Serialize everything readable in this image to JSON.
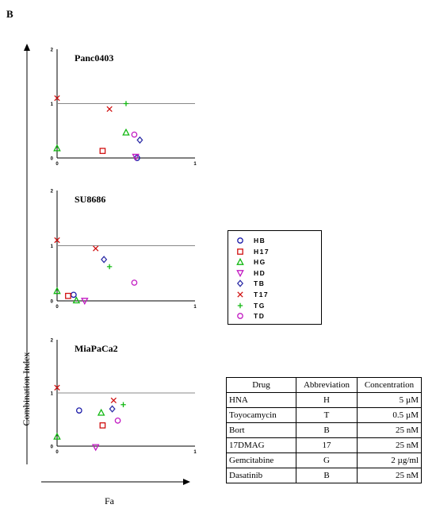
{
  "panel_label": "B",
  "shared_ylabel": "Combination  Index",
  "shared_xlabel": "Fa",
  "legend": [
    {
      "label": "HB",
      "color": "#1a1aa8",
      "marker": "circle"
    },
    {
      "label": "H17",
      "color": "#d01010",
      "marker": "square"
    },
    {
      "label": "HG",
      "color": "#11b811",
      "marker": "triangle"
    },
    {
      "label": "HD",
      "color": "#c21ac2",
      "marker": "triangle-down"
    },
    {
      "label": "TB",
      "color": "#3030a8",
      "marker": "diamond"
    },
    {
      "label": "T17",
      "color": "#d01010",
      "marker": "x"
    },
    {
      "label": "TG",
      "color": "#11b811",
      "marker": "plus"
    },
    {
      "label": "TD",
      "color": "#c21ac2",
      "marker": "circle"
    }
  ],
  "chart_data": [
    {
      "type": "scatter",
      "title": "Panc0403",
      "xlim": [
        0,
        1
      ],
      "ylim": [
        0,
        2
      ],
      "x_ticks": [
        "0",
        "1"
      ],
      "y_ticks": [
        "0",
        "1",
        "2"
      ],
      "reference_line": 1,
      "series": [
        {
          "name": "HB",
          "points": [
            [
              0.58,
              0.0
            ]
          ]
        },
        {
          "name": "H17",
          "points": [
            [
              0.33,
              0.13
            ]
          ]
        },
        {
          "name": "HG",
          "points": [
            [
              0.5,
              0.47
            ],
            [
              0.0,
              0.18
            ]
          ]
        },
        {
          "name": "HD",
          "points": [
            [
              0.57,
              0.02
            ]
          ]
        },
        {
          "name": "TB",
          "points": [
            [
              0.6,
              0.33
            ]
          ]
        },
        {
          "name": "T17",
          "points": [
            [
              0.38,
              0.9
            ],
            [
              0.0,
              1.1
            ]
          ]
        },
        {
          "name": "TG",
          "points": [
            [
              0.5,
              1.0
            ]
          ]
        },
        {
          "name": "TD",
          "points": [
            [
              0.56,
              0.43
            ]
          ]
        }
      ]
    },
    {
      "type": "scatter",
      "title": "SU8686",
      "xlim": [
        0,
        1
      ],
      "ylim": [
        0,
        2
      ],
      "x_ticks": [
        "0",
        "1"
      ],
      "y_ticks": [
        "0",
        "1",
        "2"
      ],
      "reference_line": 1,
      "series": [
        {
          "name": "HB",
          "points": [
            [
              0.12,
              0.11
            ]
          ]
        },
        {
          "name": "H17",
          "points": [
            [
              0.08,
              0.09
            ]
          ]
        },
        {
          "name": "HG",
          "points": [
            [
              0.14,
              0.01
            ],
            [
              0.0,
              0.18
            ]
          ]
        },
        {
          "name": "HD",
          "points": [
            [
              0.2,
              0.0
            ]
          ]
        },
        {
          "name": "TB",
          "points": [
            [
              0.34,
              0.75
            ]
          ]
        },
        {
          "name": "T17",
          "points": [
            [
              0.28,
              0.95
            ],
            [
              0.0,
              1.1
            ]
          ]
        },
        {
          "name": "TG",
          "points": [
            [
              0.38,
              0.62
            ]
          ]
        },
        {
          "name": "TD",
          "points": [
            [
              0.56,
              0.33
            ]
          ]
        }
      ]
    },
    {
      "type": "scatter",
      "title": "MiaPaCa2",
      "xlim": [
        0,
        1
      ],
      "ylim": [
        0,
        2
      ],
      "x_ticks": [
        "0",
        "1"
      ],
      "y_ticks": [
        "0",
        "1",
        "2"
      ],
      "reference_line": 1,
      "series": [
        {
          "name": "HB",
          "points": [
            [
              0.16,
              0.67
            ]
          ]
        },
        {
          "name": "H17",
          "points": [
            [
              0.33,
              0.39
            ]
          ]
        },
        {
          "name": "HG",
          "points": [
            [
              0.32,
              0.63
            ],
            [
              0.0,
              0.18
            ]
          ]
        },
        {
          "name": "HD",
          "points": [
            [
              0.28,
              -0.02
            ]
          ]
        },
        {
          "name": "TB",
          "points": [
            [
              0.4,
              0.7
            ]
          ]
        },
        {
          "name": "T17",
          "points": [
            [
              0.41,
              0.86
            ],
            [
              0.0,
              1.1
            ]
          ]
        },
        {
          "name": "TG",
          "points": [
            [
              0.48,
              0.78
            ]
          ]
        },
        {
          "name": "TD",
          "points": [
            [
              0.44,
              0.48
            ]
          ]
        }
      ]
    }
  ],
  "drug_table": {
    "headers": [
      "Drug",
      "Abbreviation",
      "Concentration"
    ],
    "rows": [
      [
        "HNA",
        "H",
        "5 µM"
      ],
      [
        "Toyocamycin",
        "T",
        "0.5 µM"
      ],
      [
        "Bort",
        "B",
        "25 nM"
      ],
      [
        "17DMAG",
        "17",
        "25 nM"
      ],
      [
        "Gemcitabine",
        "G",
        "2 µg/ml"
      ],
      [
        "Dasatinib",
        "B",
        "25 nM"
      ]
    ]
  }
}
